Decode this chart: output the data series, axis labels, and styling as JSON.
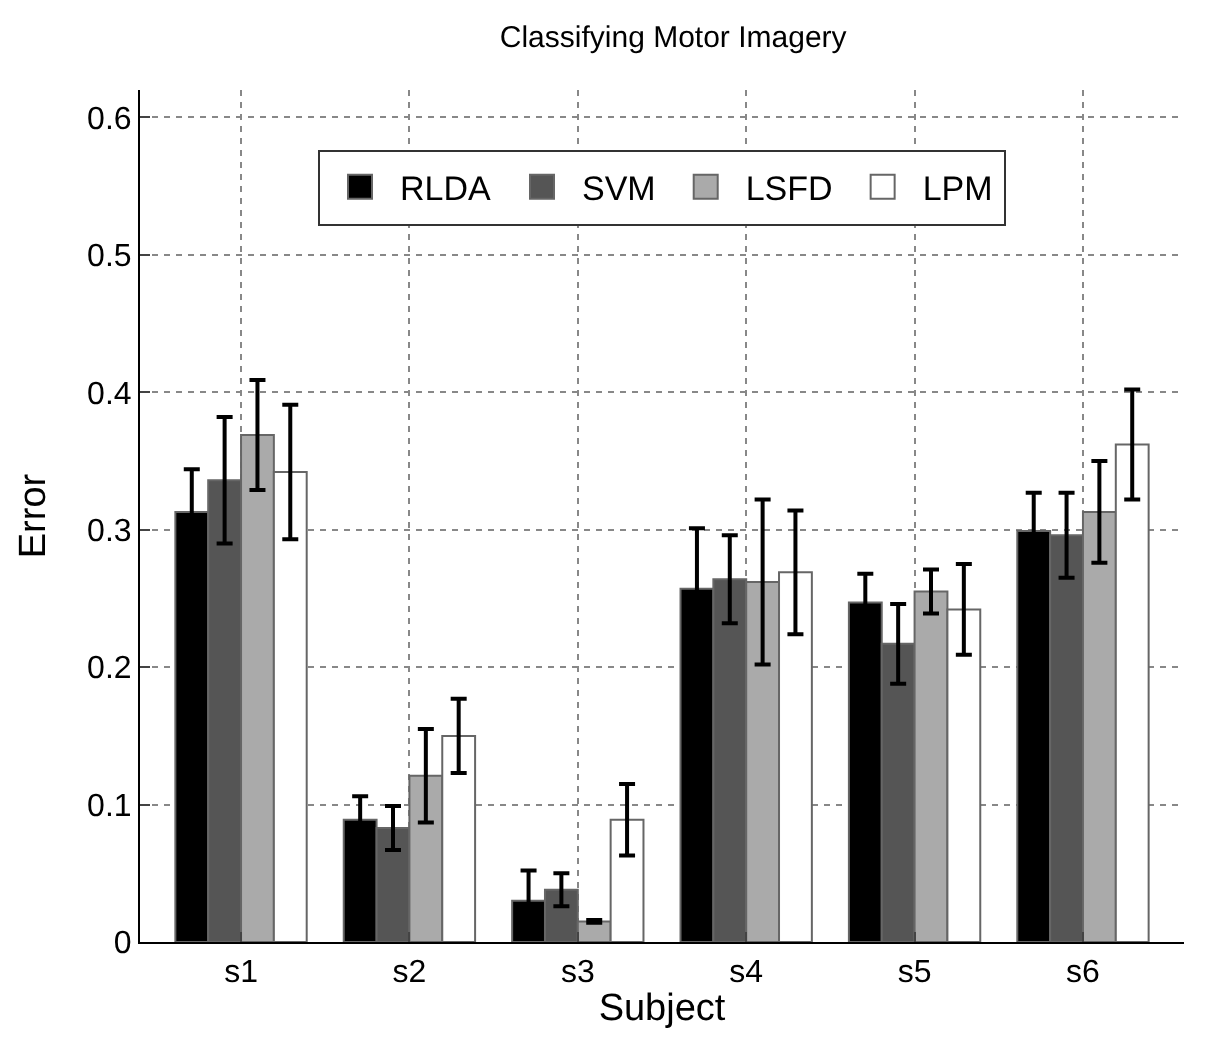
{
  "chart_data": {
    "type": "bar",
    "title": "Classifying Motor Imagery",
    "xlabel": "Subject",
    "ylabel": "Error",
    "categories": [
      "s1",
      "s2",
      "s3",
      "s4",
      "s5",
      "s6"
    ],
    "series": [
      {
        "name": "RLDA",
        "color": "#000000",
        "values": [
          0.313,
          0.089,
          0.03,
          0.257,
          0.247,
          0.299
        ],
        "errors": [
          0.031,
          0.017,
          0.022,
          0.044,
          0.021,
          0.028
        ]
      },
      {
        "name": "SVM",
        "color": "#555555",
        "values": [
          0.336,
          0.083,
          0.038,
          0.264,
          0.217,
          0.296
        ],
        "errors": [
          0.046,
          0.016,
          0.012,
          0.032,
          0.029,
          0.031
        ]
      },
      {
        "name": "LSFD",
        "color": "#aaaaaa",
        "values": [
          0.369,
          0.121,
          0.015,
          0.262,
          0.255,
          0.313
        ],
        "errors": [
          0.04,
          0.034,
          0.001,
          0.06,
          0.016,
          0.037
        ]
      },
      {
        "name": "LPM",
        "color": "#ffffff",
        "values": [
          0.342,
          0.15,
          0.089,
          0.269,
          0.242,
          0.362
        ],
        "errors": [
          0.049,
          0.027,
          0.026,
          0.045,
          0.033,
          0.04
        ]
      }
    ],
    "ylim": [
      0,
      0.62
    ],
    "yticks": [
      0,
      0.1,
      0.2,
      0.3,
      0.4,
      0.5,
      0.6
    ],
    "grid": true,
    "legend": "top"
  }
}
